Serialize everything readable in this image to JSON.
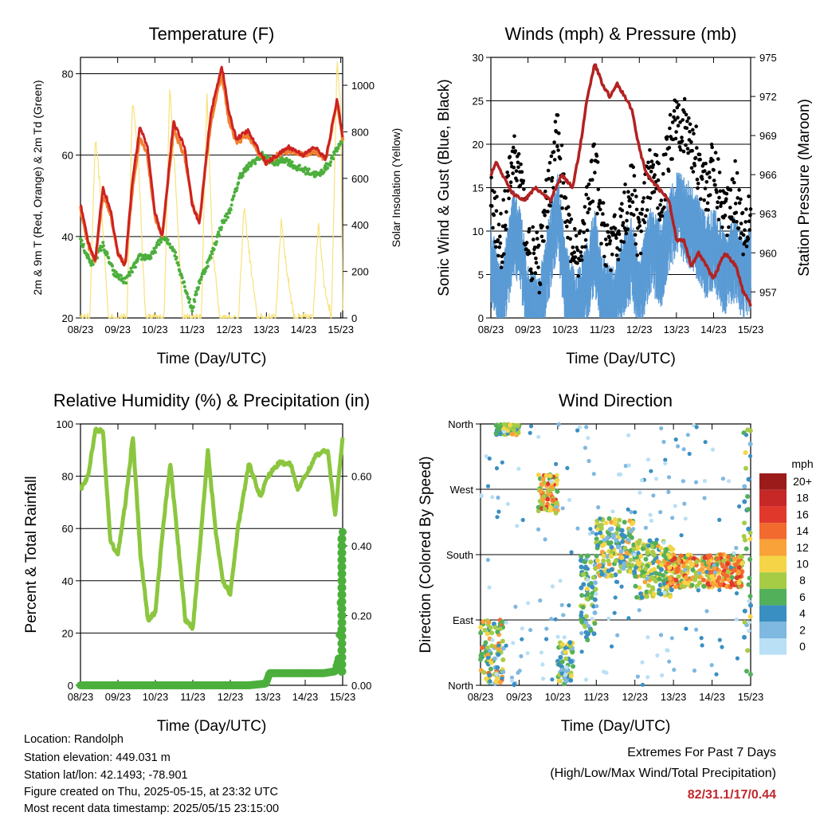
{
  "x_ticks": [
    "08/23",
    "09/23",
    "10/23",
    "11/23",
    "12/23",
    "13/23",
    "14/23",
    "15/23"
  ],
  "x_label": "Time (Day/UTC)",
  "colors": {
    "red": "#cc2222",
    "orange": "#f08030",
    "green": "#4caf3c",
    "yellow": "#f7e27a",
    "gust": "#000000",
    "wind": "#5b9bd5",
    "pressure": "#b22222",
    "rh": "#8cc63f",
    "precip": "#4caf3c"
  },
  "chart_data": [
    {
      "type": "line",
      "title": "Temperature (F)",
      "ylabel": "2m & 9m T (Red, Orange) & 2m Td (Green)",
      "ylabel_right": "Solar Insolation (Yellow)",
      "ylim": [
        20,
        84
      ],
      "yticks": [
        20,
        40,
        60,
        80
      ],
      "ylim_right": [
        0,
        1120
      ],
      "yticks_right": [
        0,
        200,
        400,
        600,
        800,
        1000
      ],
      "x_day": [
        8,
        15.05
      ],
      "series": [
        {
          "role": "temp_9m",
          "x": [
            8.0,
            8.2,
            8.4,
            8.6,
            8.8,
            9.0,
            9.2,
            9.4,
            9.6,
            9.8,
            10.0,
            10.2,
            10.5,
            10.8,
            11.0,
            11.2,
            11.5,
            11.8,
            12.0,
            12.2,
            12.5,
            12.8,
            13.0,
            13.3,
            13.6,
            14.0,
            14.3,
            14.6,
            14.9,
            15.05
          ],
          "y": [
            47,
            38,
            34,
            50,
            46,
            36,
            33,
            52,
            64,
            60,
            45,
            40,
            66,
            60,
            48,
            44,
            68,
            80,
            68,
            63,
            65,
            60,
            58,
            60,
            61,
            60,
            61,
            59,
            73,
            64
          ]
        },
        {
          "role": "temp_2m",
          "x": [
            8.0,
            8.2,
            8.4,
            8.6,
            8.8,
            9.0,
            9.2,
            9.4,
            9.6,
            9.8,
            10.0,
            10.2,
            10.5,
            10.8,
            11.0,
            11.2,
            11.5,
            11.8,
            12.0,
            12.2,
            12.5,
            12.8,
            13.0,
            13.3,
            13.6,
            14.0,
            14.3,
            14.6,
            14.9,
            15.05
          ],
          "y": [
            48,
            39,
            34,
            52,
            47,
            36,
            33,
            54,
            67,
            62,
            46,
            40,
            68,
            62,
            48,
            43,
            70,
            82,
            70,
            64,
            66,
            61,
            58,
            60,
            62,
            60,
            62,
            59,
            74,
            64
          ]
        },
        {
          "role": "dewpoint_2m",
          "x": [
            8.0,
            8.3,
            8.6,
            8.9,
            9.2,
            9.6,
            9.9,
            10.2,
            10.5,
            10.8,
            11.0,
            11.2,
            11.5,
            11.8,
            12.0,
            12.3,
            12.6,
            12.9,
            13.2,
            13.5,
            13.8,
            14.1,
            14.4,
            14.7,
            15.05
          ],
          "y": [
            39,
            33,
            38,
            31,
            29,
            35,
            35,
            40,
            37,
            28,
            22,
            29,
            35,
            43,
            46,
            55,
            58,
            60,
            58,
            59,
            57,
            56,
            55,
            58,
            64
          ]
        },
        {
          "role": "solar_insolation",
          "x": [
            8.0,
            8.25,
            8.4,
            8.55,
            8.75,
            8.9,
            9.25,
            9.4,
            9.55,
            9.75,
            9.9,
            10.25,
            10.4,
            10.55,
            10.75,
            10.9,
            11.25,
            11.4,
            11.55,
            11.75,
            11.9,
            12.25,
            12.4,
            12.55,
            12.75,
            12.9,
            13.25,
            13.4,
            13.55,
            13.75,
            13.9,
            14.25,
            14.4,
            14.55,
            14.75,
            14.9,
            15.0,
            15.05
          ],
          "y": [
            0,
            0,
            780,
            520,
            0,
            0,
            0,
            950,
            700,
            0,
            0,
            0,
            1000,
            600,
            0,
            0,
            0,
            980,
            300,
            0,
            0,
            0,
            480,
            260,
            0,
            0,
            0,
            430,
            200,
            0,
            0,
            0,
            420,
            150,
            0,
            1100,
            900,
            50
          ]
        }
      ]
    },
    {
      "type": "line",
      "title": "Winds (mph) & Pressure (mb)",
      "ylabel": "Sonic Wind & Gust (Blue, Black)",
      "ylabel_right": "Station Pressure (Maroon)",
      "ylim": [
        0,
        30
      ],
      "yticks": [
        0,
        5,
        10,
        15,
        20,
        25,
        30
      ],
      "ylim_right": [
        955,
        975
      ],
      "yticks_right": [
        957,
        960,
        963,
        966,
        969,
        972,
        975
      ],
      "x_day": [
        8,
        15
      ],
      "series": [
        {
          "role": "pressure",
          "x": [
            8.0,
            8.15,
            8.3,
            8.6,
            8.9,
            9.2,
            9.6,
            9.9,
            10.2,
            10.4,
            10.6,
            10.8,
            11.0,
            11.2,
            11.4,
            11.6,
            11.8,
            12.0,
            12.2,
            12.5,
            12.8,
            13.0,
            13.2,
            13.4,
            13.6,
            13.8,
            14.0,
            14.3,
            14.6,
            14.8,
            15.0
          ],
          "y": [
            966,
            967,
            966,
            964.5,
            964,
            965,
            964,
            966,
            965,
            968,
            972,
            974.5,
            973,
            972,
            973,
            972,
            971,
            968,
            966,
            965,
            964,
            961,
            961,
            959,
            960,
            959,
            958,
            960,
            959,
            957,
            956
          ]
        },
        {
          "role": "gust",
          "x": [
            8.0,
            8.3,
            8.6,
            8.8,
            9.0,
            9.3,
            9.6,
            9.8,
            10.0,
            10.3,
            10.6,
            10.8,
            11.0,
            11.3,
            11.6,
            11.8,
            12.0,
            12.3,
            12.6,
            12.8,
            13.0,
            13.3,
            13.6,
            13.8,
            14.0,
            14.3,
            14.6,
            14.8,
            15.0
          ],
          "y": [
            13,
            9,
            19,
            16,
            8,
            6,
            16,
            22,
            12,
            6,
            12,
            18,
            10,
            8,
            12,
            15,
            9,
            17,
            14,
            20,
            24,
            21,
            18,
            15,
            17,
            12,
            15,
            10,
            13
          ]
        },
        {
          "role": "sonic_wind",
          "x": [
            8.0,
            8.3,
            8.6,
            8.8,
            9.0,
            9.3,
            9.6,
            9.8,
            10.0,
            10.3,
            10.6,
            10.8,
            11.0,
            11.3,
            11.6,
            11.8,
            12.0,
            12.3,
            12.6,
            12.8,
            13.0,
            13.3,
            13.6,
            13.8,
            14.0,
            14.3,
            14.6,
            14.8,
            15.0
          ],
          "y": [
            8,
            3,
            12,
            10,
            3,
            2,
            10,
            14,
            6,
            2,
            6,
            10,
            4,
            3,
            7,
            9,
            4,
            10,
            8,
            12,
            14,
            13,
            11,
            9,
            10,
            7,
            9,
            6,
            8
          ]
        }
      ]
    },
    {
      "type": "line",
      "title": "Relative Humidity (%) & Precipitation (in)",
      "ylabel": "Percent & Total Rainfall",
      "ylim": [
        0,
        100
      ],
      "yticks": [
        0,
        20,
        40,
        60,
        80,
        100
      ],
      "ylim_right": [
        0,
        0.75
      ],
      "yticks_right": [
        "0.00",
        "0.20",
        "0.40",
        "0.60"
      ],
      "x_day": [
        8,
        15
      ],
      "series": [
        {
          "role": "relative_humidity",
          "x": [
            8.0,
            8.2,
            8.4,
            8.6,
            8.8,
            9.0,
            9.2,
            9.4,
            9.6,
            9.8,
            10.0,
            10.2,
            10.4,
            10.6,
            10.8,
            11.0,
            11.2,
            11.4,
            11.6,
            11.8,
            12.0,
            12.2,
            12.5,
            12.8,
            13.0,
            13.3,
            13.6,
            13.8,
            14.0,
            14.3,
            14.6,
            14.8,
            15.0
          ],
          "y": [
            75,
            80,
            98,
            97,
            55,
            50,
            70,
            95,
            50,
            25,
            28,
            60,
            85,
            55,
            25,
            22,
            55,
            90,
            60,
            40,
            35,
            60,
            85,
            72,
            80,
            85,
            85,
            75,
            80,
            88,
            90,
            65,
            95
          ]
        },
        {
          "role": "precipitation",
          "x": [
            8.0,
            8.5,
            9.0,
            9.5,
            10.0,
            10.5,
            11.0,
            11.5,
            12.0,
            12.5,
            12.95,
            13.05,
            13.5,
            14.0,
            14.5,
            14.8,
            14.9,
            14.95,
            15.0
          ],
          "y": [
            0,
            0,
            0,
            0,
            0,
            0,
            0,
            0,
            0,
            0,
            0.005,
            0.035,
            0.035,
            0.035,
            0.035,
            0.04,
            0.08,
            0.25,
            0.44
          ]
        }
      ]
    },
    {
      "type": "scatter",
      "title": "Wind Direction",
      "ylabel": "Direction (Colored By Speed)",
      "yticks": [
        "North",
        "East",
        "South",
        "West",
        "North"
      ],
      "ylim": [
        0,
        360
      ],
      "x_day": [
        8,
        15
      ],
      "colorbar": {
        "unit": "mph",
        "labels": [
          "20+",
          "18",
          "16",
          "14",
          "12",
          "10",
          "8",
          "6",
          "4",
          "2",
          "0"
        ],
        "colors": [
          "#9b1b1b",
          "#c62828",
          "#e0392b",
          "#f26a2e",
          "#f9a23a",
          "#f5d547",
          "#a6cc46",
          "#52b05a",
          "#3a8fc2",
          "#7fb8e0",
          "#b9e0f5"
        ]
      },
      "clusters": [
        {
          "x": [
            8.0,
            8.6
          ],
          "dir": [
            0,
            90
          ],
          "speed": [
            2,
            14
          ]
        },
        {
          "x": [
            8.4,
            9.0
          ],
          "dir": [
            345,
            360
          ],
          "speed": [
            4,
            12
          ]
        },
        {
          "x": [
            9.5,
            10.0
          ],
          "dir": [
            235,
            290
          ],
          "speed": [
            6,
            16
          ]
        },
        {
          "x": [
            10.0,
            10.4
          ],
          "dir": [
            0,
            60
          ],
          "speed": [
            2,
            10
          ]
        },
        {
          "x": [
            10.6,
            11.0
          ],
          "dir": [
            60,
            180
          ],
          "speed": [
            2,
            10
          ]
        },
        {
          "x": [
            11.0,
            12.0
          ],
          "dir": [
            150,
            230
          ],
          "speed": [
            2,
            12
          ]
        },
        {
          "x": [
            12.0,
            13.0
          ],
          "dir": [
            120,
            200
          ],
          "speed": [
            4,
            12
          ]
        },
        {
          "x": [
            12.8,
            14.8
          ],
          "dir": [
            135,
            180
          ],
          "speed": [
            6,
            16
          ]
        },
        {
          "x": [
            14.8,
            15.0
          ],
          "dir": [
            0,
            360
          ],
          "speed": [
            2,
            10
          ]
        }
      ]
    }
  ],
  "station": {
    "location": "Location: Randolph",
    "elevation": "Station elevation: 449.031 m",
    "latlon": "Station lat/lon: 42.1493; -78.901",
    "created": "Figure created on Thu, 2025-05-15, at 23:32 UTC",
    "recent": "Most recent data timestamp: 2025/05/15 23:15:00"
  },
  "extremes": {
    "title": "Extremes For Past 7 Days",
    "subtitle": "(High/Low/Max Wind/Total Precipitation)",
    "values": "82/31.1/17/0.44"
  }
}
